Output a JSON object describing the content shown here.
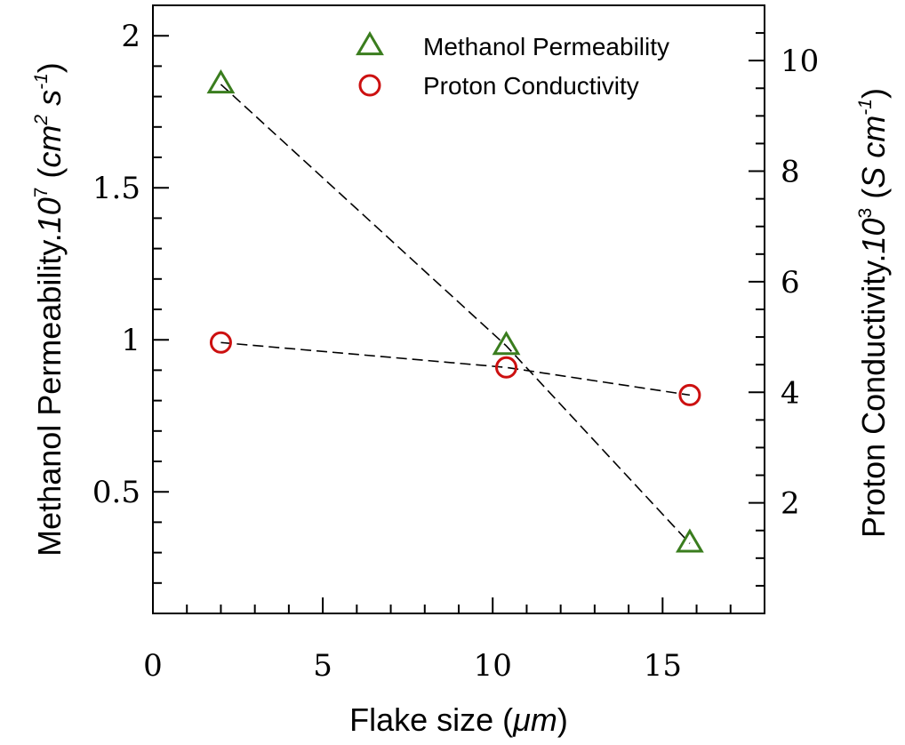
{
  "chart_data": {
    "type": "scatter",
    "x_axis": {
      "label_main": "Flake size (",
      "label_unit": "μm",
      "label_close": ")",
      "range": [
        0,
        18
      ],
      "major_ticks": [
        0,
        5,
        10,
        15
      ],
      "major_tick_labels": [
        "0",
        "5",
        "10",
        "15"
      ],
      "minor_step": 1
    },
    "y_left": {
      "label_main": "Methanol Permeability.",
      "label_factor": "10",
      "label_factor_exp": "7",
      "label_unit_open": " (",
      "label_unit_cm": "cm",
      "label_unit_cm_exp": "2",
      "label_unit_s": " s",
      "label_unit_s_exp": "-1",
      "label_close": ")",
      "range": [
        0.1,
        2.1
      ],
      "major_ticks": [
        0.5,
        1,
        1.5,
        2
      ],
      "major_tick_labels": [
        "0.5",
        "1",
        "1.5",
        "2"
      ],
      "minor_step": 0.1
    },
    "y_right": {
      "label_main": "Proton Conductivity.",
      "label_factor": "10",
      "label_factor_exp": "3",
      "label_unit_open": " (",
      "label_unit_s": "S cm",
      "label_unit_exp": "-1",
      "label_close": ")",
      "range": [
        0,
        11
      ],
      "major_ticks": [
        2,
        4,
        6,
        8,
        10
      ],
      "major_tick_labels": [
        "2",
        "4",
        "6",
        "8",
        "10"
      ],
      "minor_step": 0.5
    },
    "series": [
      {
        "name": "Methanol Permeability",
        "axis": "left",
        "marker": "triangle-open",
        "color": "#3a7d1e",
        "x": [
          2.0,
          10.4,
          15.8
        ],
        "y": [
          1.84,
          0.98,
          0.33
        ]
      },
      {
        "name": "Proton Conductivity",
        "axis": "right",
        "marker": "circle-open",
        "color": "#cc1010",
        "x": [
          2.0,
          10.4,
          15.8
        ],
        "y": [
          4.9,
          4.45,
          3.95
        ]
      }
    ],
    "legend_position": "top-right",
    "grid": false,
    "trend_lines": "dashed"
  }
}
